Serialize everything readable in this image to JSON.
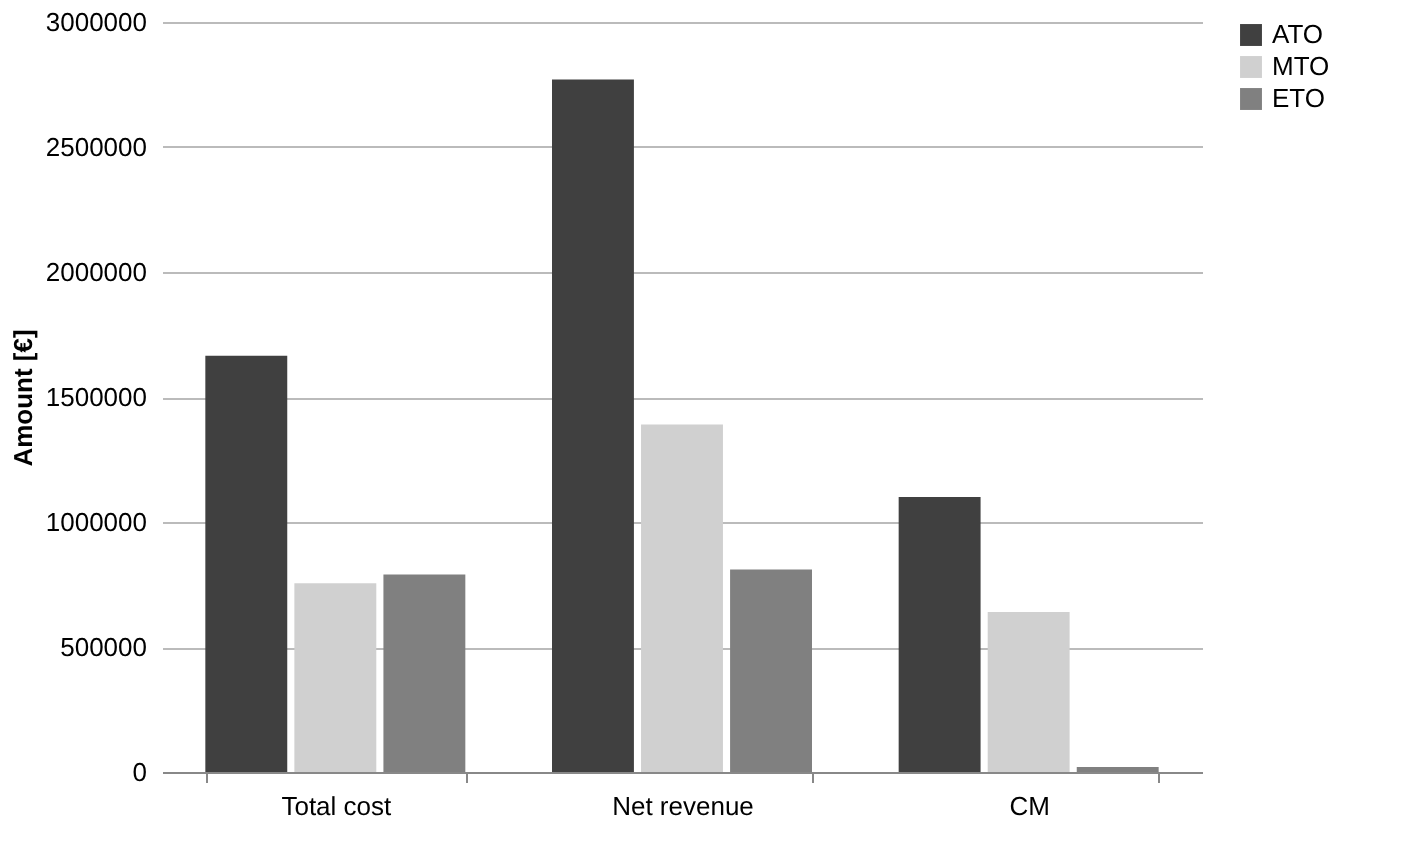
{
  "chart_data": {
    "type": "bar",
    "ylabel": "Amount [€]",
    "categories": [
      "Total cost",
      "Net revenue",
      "CM"
    ],
    "series": [
      {
        "name": "ATO",
        "color": "#404040",
        "values": [
          1665000,
          2770000,
          1100000
        ]
      },
      {
        "name": "MTO",
        "color": "#d0d0d0",
        "values": [
          755000,
          1390000,
          640000
        ]
      },
      {
        "name": "ETO",
        "color": "#808080",
        "values": [
          790000,
          810000,
          20000
        ]
      }
    ],
    "ylim": [
      0,
      3000000
    ],
    "yticks": [
      0,
      500000,
      1000000,
      1500000,
      2000000,
      2500000,
      3000000
    ],
    "grid": "y",
    "legend": "right"
  }
}
